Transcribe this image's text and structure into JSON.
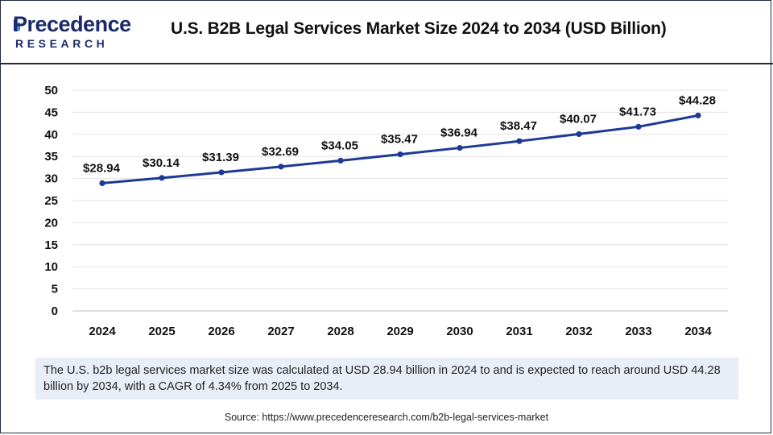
{
  "header": {
    "logo_top": "Precedence",
    "logo_bottom": "RESEARCH",
    "title": "U.S. B2B Legal Services Market Size 2024 to 2034 (USD Billion)"
  },
  "chart_data": {
    "type": "line",
    "title": "U.S. B2B Legal Services Market Size 2024 to 2034 (USD Billion)",
    "categories": [
      "2024",
      "2025",
      "2026",
      "2027",
      "2028",
      "2029",
      "2030",
      "2031",
      "2032",
      "2033",
      "2034"
    ],
    "values": [
      28.94,
      30.14,
      31.39,
      32.69,
      34.05,
      35.47,
      36.94,
      38.47,
      40.07,
      41.73,
      44.28
    ],
    "data_labels": [
      "$28.94",
      "$30.14",
      "$31.39",
      "$32.69",
      "$34.05",
      "$35.47",
      "$36.94",
      "$38.47",
      "$40.07",
      "$41.73",
      "$44.28"
    ],
    "xlabel": "",
    "ylabel": "",
    "ylim": [
      0,
      50
    ],
    "yticks": [
      0,
      5,
      10,
      15,
      20,
      25,
      30,
      35,
      40,
      45,
      50
    ],
    "grid": true,
    "legend": "none",
    "color": "#1c3a96"
  },
  "summary": "The U.S. b2b legal services market size was calculated at USD 28.94 billion in 2024 to and is expected to reach around USD 44.28 billion by 2034, with a CAGR of 4.34% from 2025 to 2034.",
  "source": "Source: https://www.precedenceresearch.com/b2b-legal-services-market"
}
